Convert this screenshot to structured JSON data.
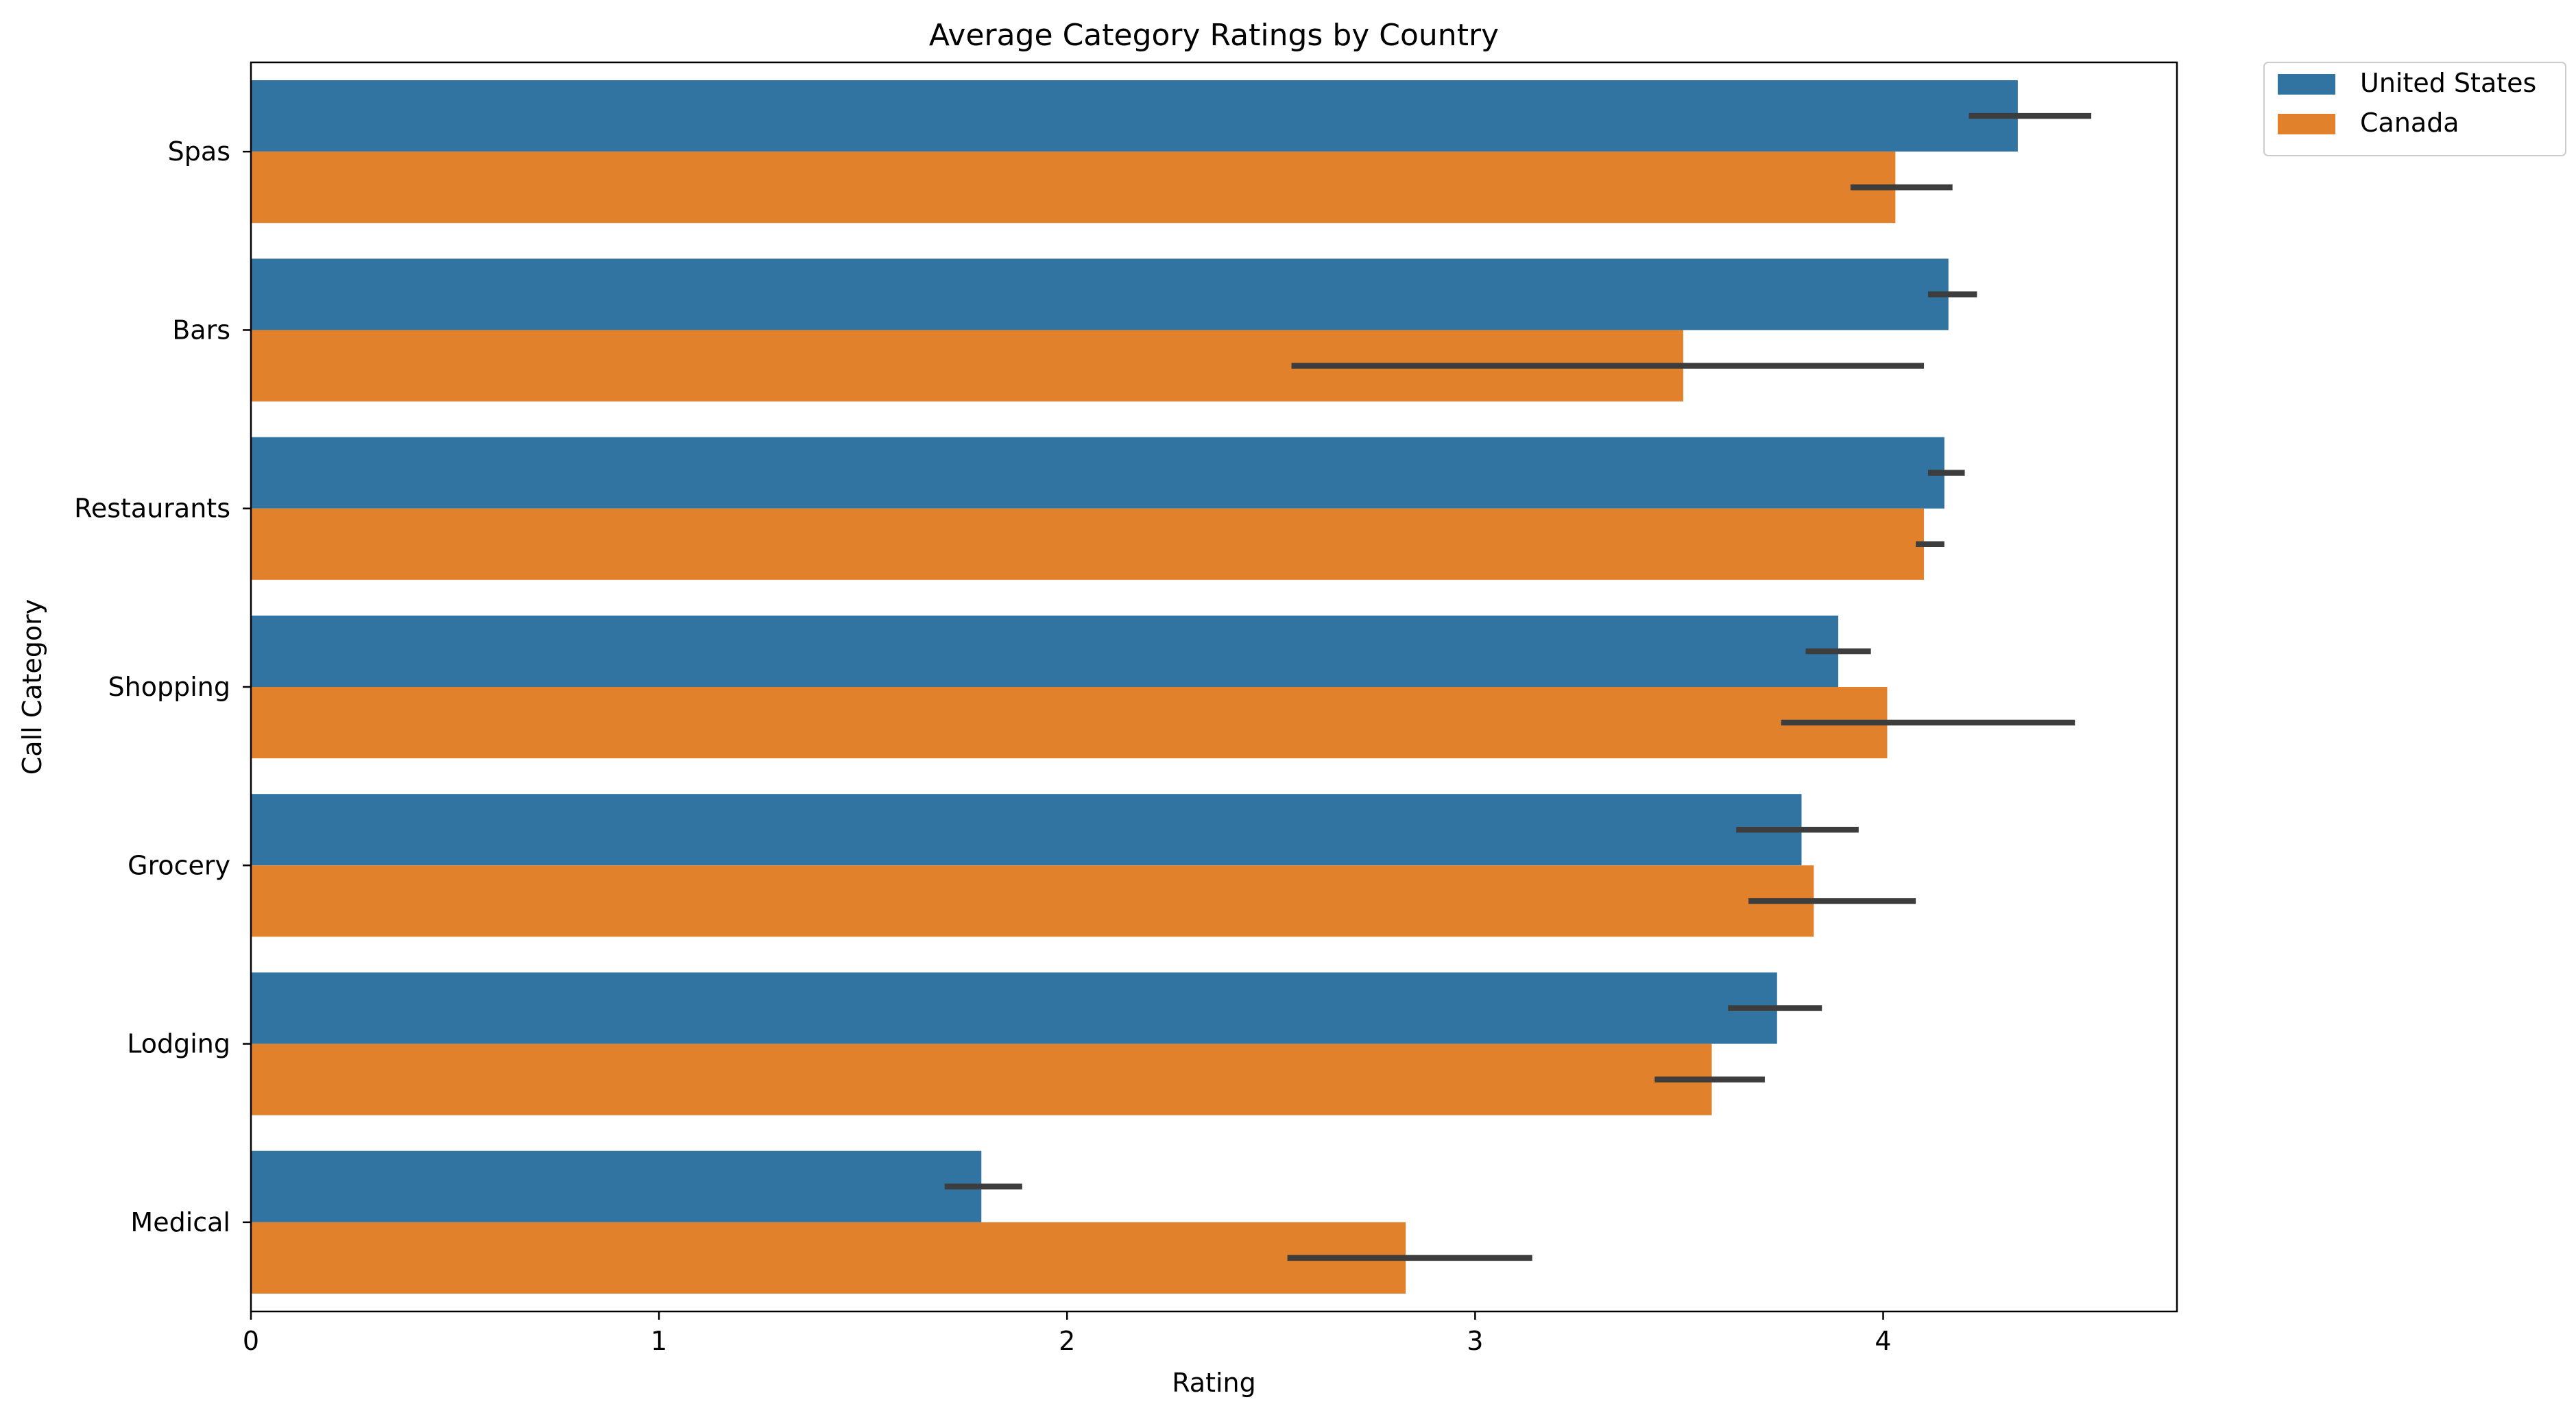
{
  "chart_data": {
    "type": "bar",
    "orientation": "horizontal",
    "title": "Average Category Ratings by Country",
    "xlabel": "Rating",
    "ylabel": "Call Category",
    "xlim": [
      0,
      4.72
    ],
    "xticks": [
      0,
      1,
      2,
      3,
      4
    ],
    "grid": false,
    "legend_position": "outside-top-right",
    "categories": [
      "Spas",
      "Bars",
      "Restaurants",
      "Shopping",
      "Grocery",
      "Lodging",
      "Medical"
    ],
    "series": [
      {
        "name": "United States",
        "color": "#3274a1",
        "values": [
          4.33,
          4.16,
          4.15,
          3.89,
          3.8,
          3.74,
          1.79
        ],
        "error_low": [
          4.21,
          4.11,
          4.11,
          3.81,
          3.64,
          3.62,
          1.7
        ],
        "error_high": [
          4.51,
          4.23,
          4.2,
          3.97,
          3.94,
          3.85,
          1.89
        ]
      },
      {
        "name": "Canada",
        "color": "#e1812c",
        "values": [
          4.03,
          3.51,
          4.1,
          4.01,
          3.83,
          3.58,
          2.83
        ],
        "error_low": [
          3.92,
          2.55,
          4.08,
          3.75,
          3.67,
          3.44,
          2.54
        ],
        "error_high": [
          4.17,
          4.1,
          4.15,
          4.47,
          4.08,
          3.71,
          3.14
        ]
      }
    ]
  }
}
